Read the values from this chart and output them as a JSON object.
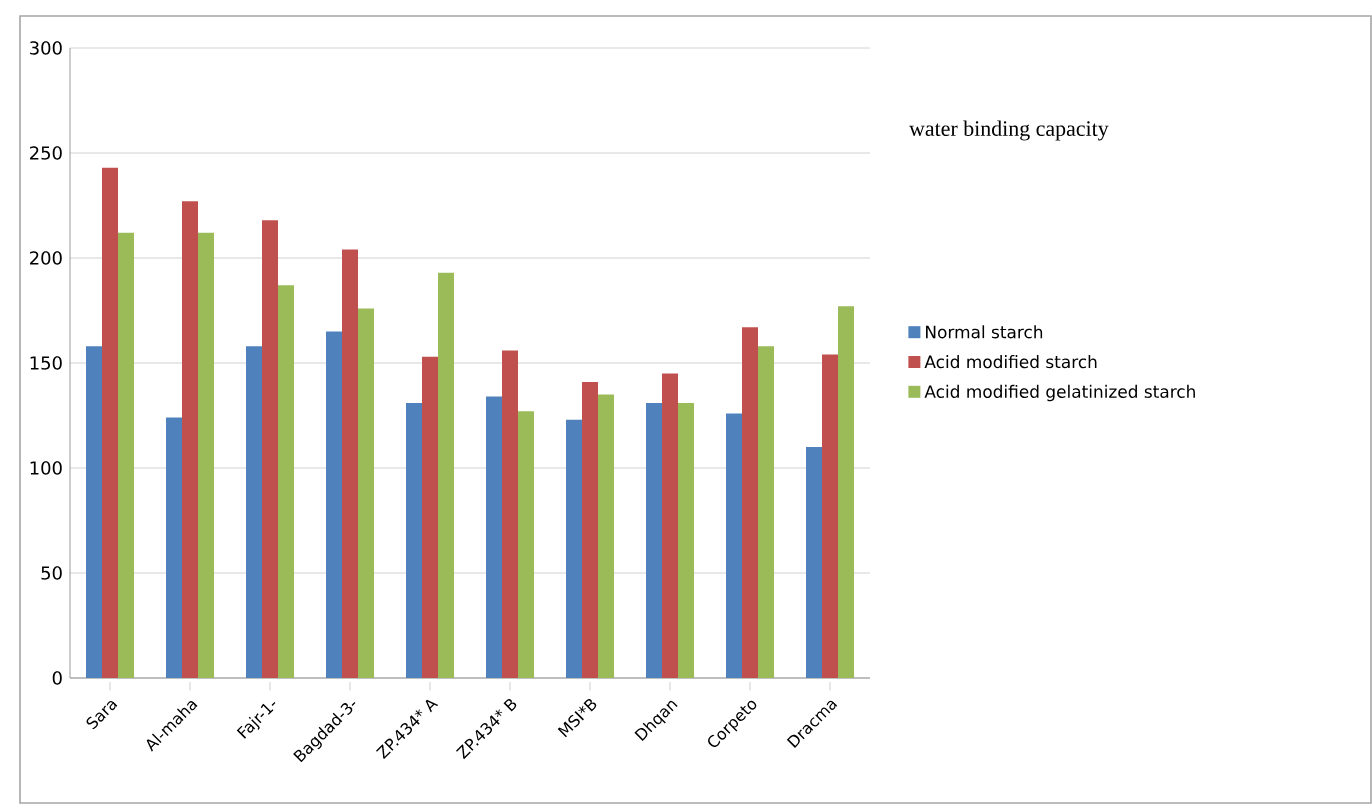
{
  "chart_data": {
    "type": "bar",
    "title": "water binding capacity",
    "categories": [
      "Sara",
      "Al-maha",
      "Fajr-1-",
      "Bagdad-3-",
      "ZP.434* A",
      "ZP.434* B",
      "MSI*B",
      "Dhqan",
      "Corpeto",
      "Dracma"
    ],
    "series": [
      {
        "name": "Normal starch",
        "color": "#4f81bd",
        "values": [
          158,
          124,
          158,
          165,
          131,
          134,
          123,
          131,
          126,
          110
        ]
      },
      {
        "name": "Acid modified starch",
        "color": "#c0504d",
        "values": [
          243,
          227,
          218,
          204,
          153,
          156,
          141,
          145,
          167,
          154
        ]
      },
      {
        "name": "Acid modified gelatinized starch",
        "color": "#9bbb59",
        "values": [
          212,
          212,
          187,
          176,
          193,
          127,
          135,
          131,
          158,
          177
        ]
      }
    ],
    "ylim": [
      0,
      300
    ],
    "yticks": [
      0,
      50,
      100,
      150,
      200,
      250,
      300
    ],
    "grid": "y",
    "legend": "right"
  }
}
